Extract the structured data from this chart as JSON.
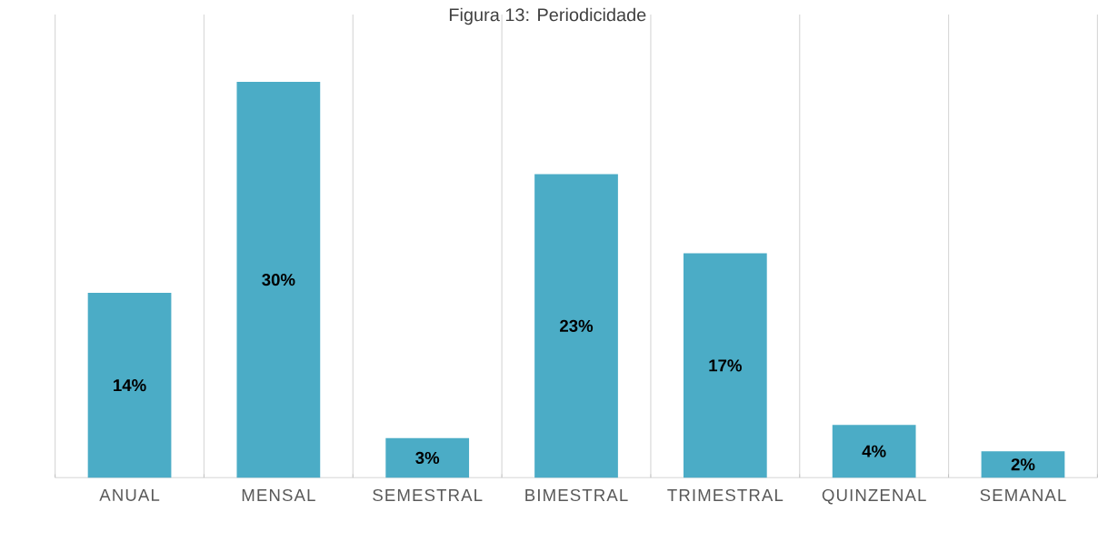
{
  "chart_data": {
    "type": "bar",
    "title": "Figura 13: Periodicidade",
    "categories": [
      "ANUAL",
      "MENSAL",
      "SEMESTRAL",
      "BIMESTRAL",
      "TRIMESTRAL",
      "QUINZENAL",
      "SEMANAL"
    ],
    "values": [
      14,
      30,
      3,
      23,
      17,
      4,
      2
    ],
    "value_labels": [
      "14%",
      "30%",
      "3%",
      "23%",
      "17%",
      "4%",
      "2%"
    ],
    "color": "#4bacc6",
    "grid": "x"
  }
}
